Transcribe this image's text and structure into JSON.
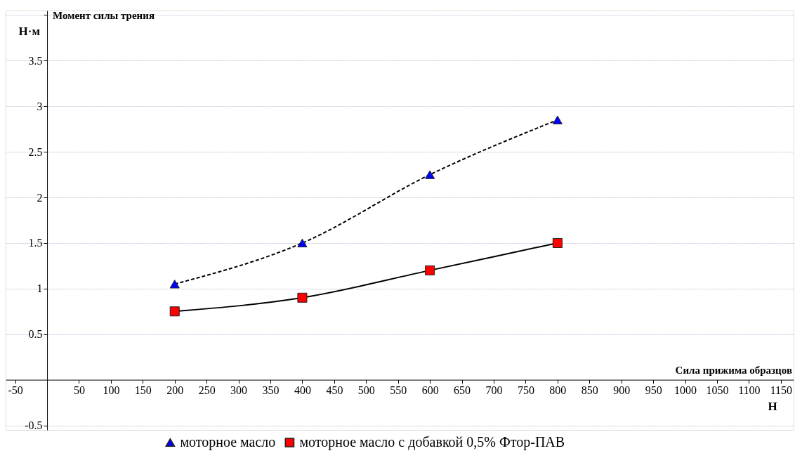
{
  "chart_data": {
    "type": "line",
    "xlabel": "Сила прижима образцов",
    "ylabel": "Момент силы трения",
    "annotations": [
      "Н·м",
      "Н"
    ],
    "x": [
      200,
      400,
      600,
      800
    ],
    "series": [
      {
        "name": "моторное масло",
        "color": "#0000ff",
        "values": [
          1.05,
          1.5,
          2.25,
          2.85
        ],
        "marker": "triangle",
        "line_style": "dashed"
      },
      {
        "name": "моторное масло с добавкой 0,5% Фтор-ПАВ",
        "color": "#ff0000",
        "values": [
          0.75,
          0.9,
          1.2,
          1.5
        ],
        "marker": "square",
        "line_style": "solid"
      }
    ],
    "xlim": [
      -65,
      1170
    ],
    "ylim": [
      -0.55,
      4.05
    ],
    "xticks": [
      -50,
      50,
      100,
      150,
      200,
      250,
      300,
      350,
      400,
      450,
      500,
      550,
      600,
      650,
      700,
      750,
      800,
      850,
      900,
      950,
      1000,
      1050,
      1100,
      1150
    ],
    "yticks": [
      -0.5,
      0.5,
      1,
      1.5,
      2,
      2.5,
      3,
      3.5,
      {
        "value": 4,
        "label": null
      }
    ],
    "grid": "y",
    "legend": "bottom"
  }
}
